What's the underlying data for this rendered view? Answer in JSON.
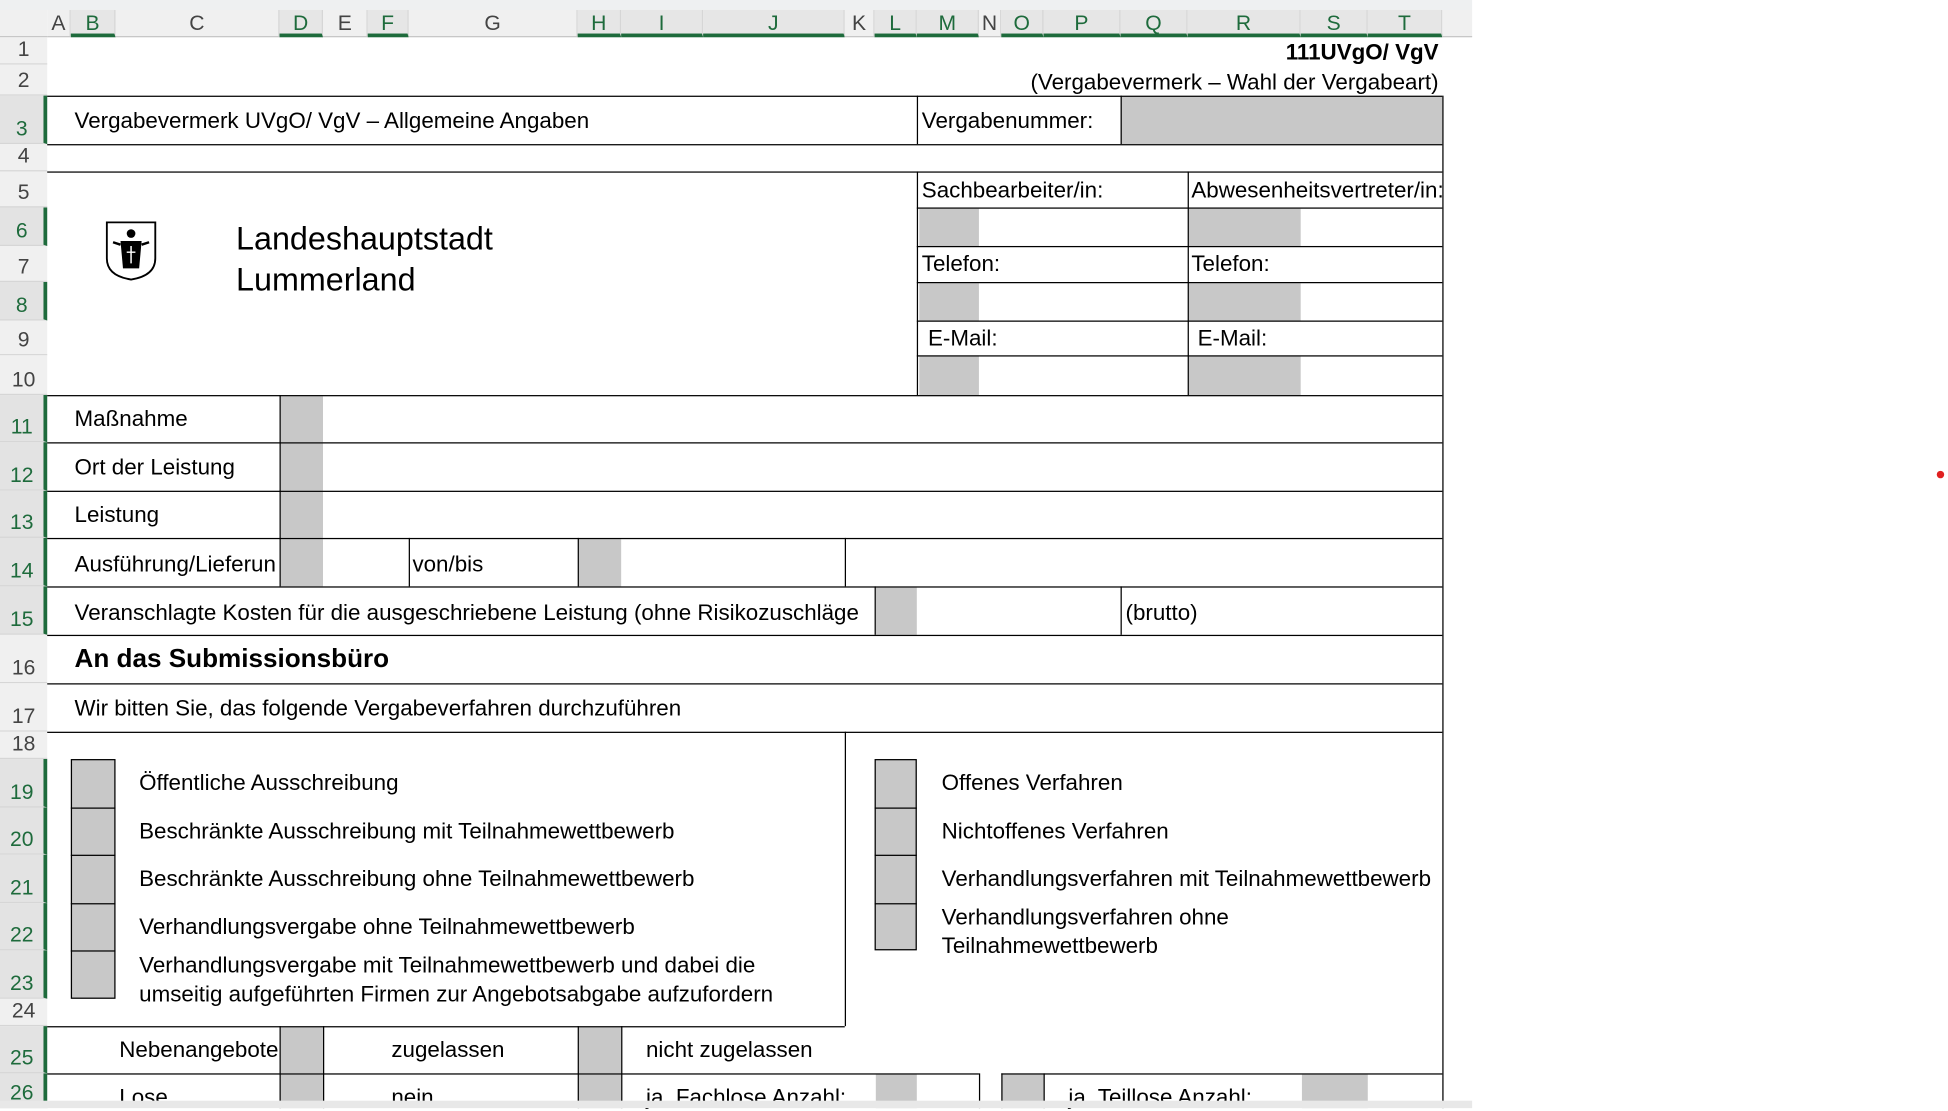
{
  "columns": [
    "A",
    "B",
    "C",
    "D",
    "E",
    "F",
    "G",
    "H",
    "I",
    "J",
    "K",
    "L",
    "M",
    "N",
    "O",
    "P",
    "Q",
    "R",
    "S",
    "T"
  ],
  "rows": [
    "1",
    "2",
    "3",
    "4",
    "5",
    "6",
    "7",
    "8",
    "9",
    "10",
    "11",
    "12",
    "13",
    "14",
    "15",
    "16",
    "17",
    "18",
    "19",
    "20",
    "21",
    "22",
    "23",
    "24",
    "25",
    "26"
  ],
  "header": {
    "form_code": "111UVgO/ VgV",
    "form_subtitle": "(Vergabevermerk – Wahl der Vergabeart)"
  },
  "section_title": "Vergabevermerk UVgO/ VgV – Allgemeine Angaben",
  "vergabenummer_label": "Vergabenummer:",
  "org": {
    "line1": "Landeshauptstadt",
    "line2": "Lummerland",
    "logo_icon": "coat-of-arms-icon"
  },
  "contacts": {
    "sachbearbeiter": "Sachbearbeiter/in:",
    "vertreter": "Abwesenheitsvertreter/in:",
    "telefon": "Telefon:",
    "email": "E-Mail:"
  },
  "fields": {
    "massnahme": "Maßnahme",
    "ort": "Ort der Leistung",
    "leistung": "Leistung",
    "ausfuehrung": "Ausführung/Lieferun",
    "vonbis": "von/bis",
    "kosten": "Veranschlagte Kosten für die ausgeschriebene Leistung (ohne Risikozuschläge",
    "brutto": "(brutto)"
  },
  "submission": {
    "title": "An das Submissionsbüro",
    "request": "Wir bitten Sie, das folgende Vergabeverfahren durchzuführen"
  },
  "options_left": [
    "Öffentliche Ausschreibung",
    "Beschränkte Ausschreibung mit Teilnahmewettbewerb",
    "Beschränkte Ausschreibung ohne Teilnahmewettbewerb",
    "Verhandlungsvergabe ohne Teilnahmewettbewerb",
    "Verhandlungsvergabe mit Teilnahmewettbewerb und dabei die",
    "umseitig aufgeführten Firmen zur Angebotsabgabe aufzufordern"
  ],
  "options_right": [
    "Offenes Verfahren",
    "Nichtoffenes Verfahren",
    "Verhandlungsverfahren mit Teilnahmewettbewerb",
    "Verhandlungsverfahren ohne",
    "Teilnahmewettbewerb"
  ],
  "nebenangebote": {
    "label": "Nebenangebote",
    "yes": "zugelassen",
    "no": "nicht zugelassen"
  },
  "lose": {
    "label": "Lose",
    "no": "nein",
    "fachlose": "ja, Fachlose Anzahl:",
    "teillose": "ja, Teillose Anzahl:"
  },
  "colors": {
    "accent": "#1e6b3c",
    "input_fill": "#c8c8c8",
    "marker": "#e02020"
  }
}
